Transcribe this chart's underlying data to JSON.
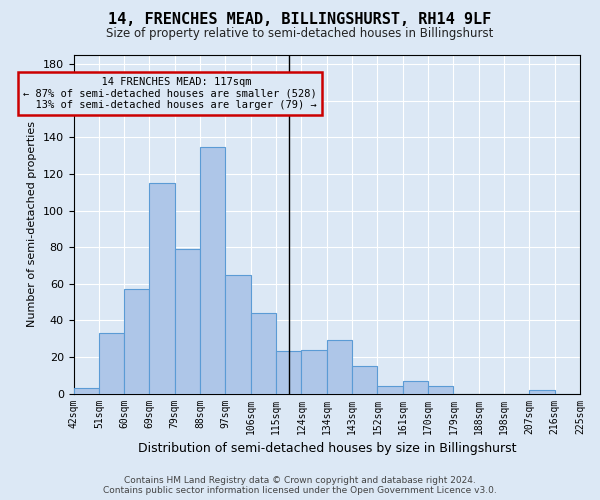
{
  "title": "14, FRENCHES MEAD, BILLINGSHURST, RH14 9LF",
  "subtitle": "Size of property relative to semi-detached houses in Billingshurst",
  "xlabel": "Distribution of semi-detached houses by size in Billingshurst",
  "ylabel": "Number of semi-detached properties",
  "bar_values": [
    3,
    33,
    57,
    115,
    79,
    135,
    65,
    44,
    23,
    24,
    29,
    15,
    4,
    7,
    4,
    0,
    0,
    0,
    2,
    0
  ],
  "bar_labels": [
    "42sqm",
    "51sqm",
    "60sqm",
    "69sqm",
    "79sqm",
    "88sqm",
    "97sqm",
    "106sqm",
    "115sqm",
    "124sqm",
    "134sqm",
    "143sqm",
    "152sqm",
    "161sqm",
    "170sqm",
    "179sqm",
    "188sqm",
    "198sqm",
    "207sqm",
    "216sqm",
    "225sqm"
  ],
  "bar_color": "#aec6e8",
  "bar_edge_color": "#5b9bd5",
  "ylim": [
    0,
    185
  ],
  "yticks": [
    0,
    20,
    40,
    60,
    80,
    100,
    120,
    140,
    160,
    180
  ],
  "property_label": "14 FRENCHES MEAD: 117sqm",
  "pct_smaller": 87,
  "n_smaller": 528,
  "pct_larger": 13,
  "n_larger": 79,
  "annotation_box_color": "#cc0000",
  "vline_x_index": 8.0,
  "background_color": "#dce8f5",
  "footer1": "Contains HM Land Registry data © Crown copyright and database right 2024.",
  "footer2": "Contains public sector information licensed under the Open Government Licence v3.0."
}
